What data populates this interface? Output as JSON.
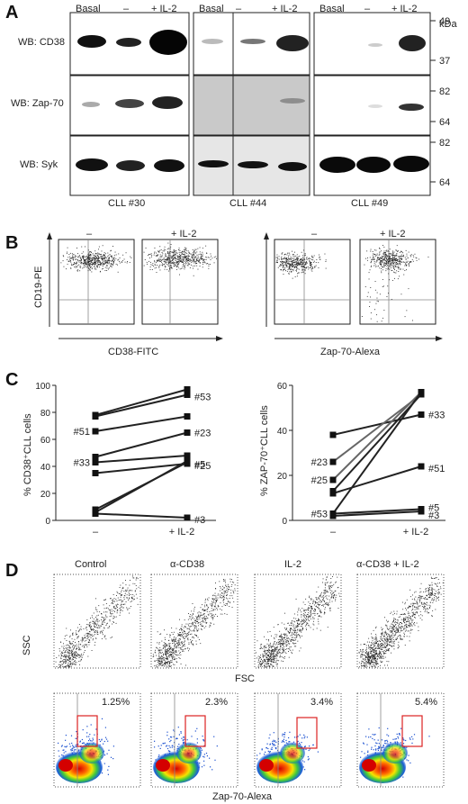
{
  "panel_A": {
    "letter": "A",
    "kda": "kDa",
    "lane_labels": [
      "Basal",
      "–",
      "+ IL-2"
    ],
    "rows": [
      "WB: CD38",
      "WB: Zap-70",
      "WB: Syk"
    ],
    "groups": [
      "CLL #30",
      "CLL #44",
      "CLL #49"
    ],
    "mw_cd38": [
      "49",
      "37"
    ],
    "mw_zap": [
      "82",
      "64"
    ],
    "mw_syk": [
      "82",
      "64"
    ]
  },
  "panel_B": {
    "letter": "B",
    "col_neg": "–",
    "col_il2": "+ IL-2",
    "ylabel": "CD19-PE",
    "xlabel_left": "CD38-FITC",
    "xlabel_right": "Zap-70-Alexa"
  },
  "panel_C": {
    "letter": "C",
    "chart_data": [
      {
        "type": "line",
        "ylabel": "% CD38⁺CLL cells",
        "x": [
          "–",
          "+ IL-2"
        ],
        "ylim": [
          0,
          100
        ],
        "yticks": [
          "0",
          "20",
          "40",
          "60",
          "80",
          "100"
        ],
        "series": [
          {
            "values": [
              78,
              97
            ]
          },
          {
            "name": "#53",
            "values": [
              77,
              93
            ]
          },
          {
            "name": "#51",
            "values": [
              66,
              77
            ]
          },
          {
            "name": "#23",
            "values": [
              47,
              65
            ]
          },
          {
            "name": "#33",
            "values": [
              43,
              48
            ]
          },
          {
            "name": "#25",
            "values": [
              35,
              42
            ]
          },
          {
            "name": "#5",
            "values": [
              8,
              43
            ]
          },
          {
            "values": [
              6,
              44
            ]
          },
          {
            "name": "#3",
            "values": [
              5,
              2
            ]
          }
        ],
        "labels_left": [
          "#51",
          "#33"
        ],
        "labels_right": [
          "#53",
          "#23",
          "#25",
          "#5",
          "#3"
        ]
      },
      {
        "type": "line",
        "ylabel": "% ZAP-70⁺CLL cells",
        "x": [
          "–",
          "+ IL-2"
        ],
        "ylim": [
          0,
          60
        ],
        "yticks": [
          "0",
          "20",
          "40",
          "60"
        ],
        "series": [
          {
            "name": "#33",
            "values": [
              38,
              47
            ]
          },
          {
            "name": "#23",
            "values": [
              26,
              56
            ]
          },
          {
            "name": "#25",
            "values": [
              18,
              57
            ]
          },
          {
            "values": [
              13,
              56
            ]
          },
          {
            "name": "#51",
            "values": [
              12,
              24
            ]
          },
          {
            "name": "#53",
            "values": [
              3,
              57
            ]
          },
          {
            "name": "#5",
            "values": [
              3,
              5
            ]
          },
          {
            "name": "#3",
            "values": [
              2,
              4
            ]
          }
        ],
        "labels_left": [
          "#23",
          "#25",
          "#53"
        ],
        "labels_right": [
          "#33",
          "#51",
          "#5",
          "#3"
        ]
      }
    ]
  },
  "panel_D": {
    "letter": "D",
    "conditions": [
      "Control",
      "α-CD38",
      "IL-2",
      "α-CD38 + IL-2"
    ],
    "percents": [
      "1.25%",
      "2.3%",
      "3.4%",
      "5.4%"
    ],
    "ylabel": "SSC",
    "xlabel_top": "FSC",
    "xlabel_bottom": "Zap-70-Alexa"
  }
}
